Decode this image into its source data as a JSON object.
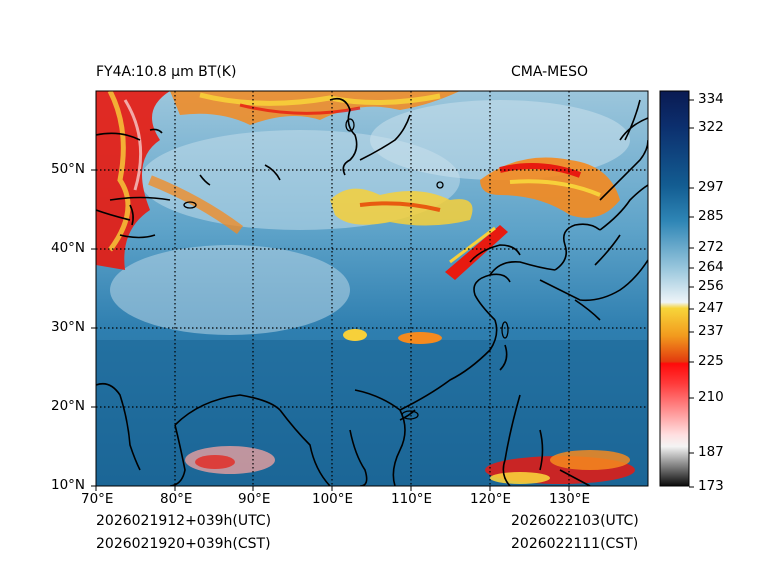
{
  "title_left": "FY4A:10.8 µm BT(K)",
  "title_right": "CMA-MESO",
  "init_utc": "2026021912+039h(UTC)",
  "init_cst": "2026021920+039h(CST)",
  "valid_utc": "2026022103(UTC)",
  "valid_cst": "2026022111(CST)",
  "lon_labels": [
    "70°E",
    "80°E",
    "90°E",
    "100°E",
    "110°E",
    "120°E",
    "130°E"
  ],
  "lat_labels": [
    "50°N",
    "40°N",
    "30°N",
    "20°N",
    "10°N"
  ],
  "colorbar_ticks": [
    "334",
    "322",
    "297",
    "285",
    "272",
    "264",
    "256",
    "247",
    "237",
    "225",
    "210",
    "187",
    "173"
  ],
  "colors": {
    "ocean_blue": "#1f6e9e",
    "land_blue": "#3f8fbf",
    "cold_cloud_red": "#e81a10",
    "cloud_orange": "#f58a1e",
    "cloud_yellow": "#f7d03a",
    "coast": "#000000"
  }
}
